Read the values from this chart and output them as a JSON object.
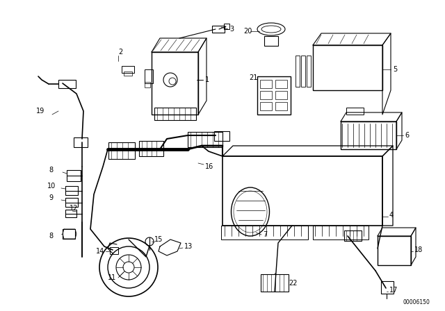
{
  "background_color": "#ffffff",
  "line_color": "#000000",
  "fig_width": 6.4,
  "fig_height": 4.48,
  "dpi": 100,
  "watermark": "00006150"
}
